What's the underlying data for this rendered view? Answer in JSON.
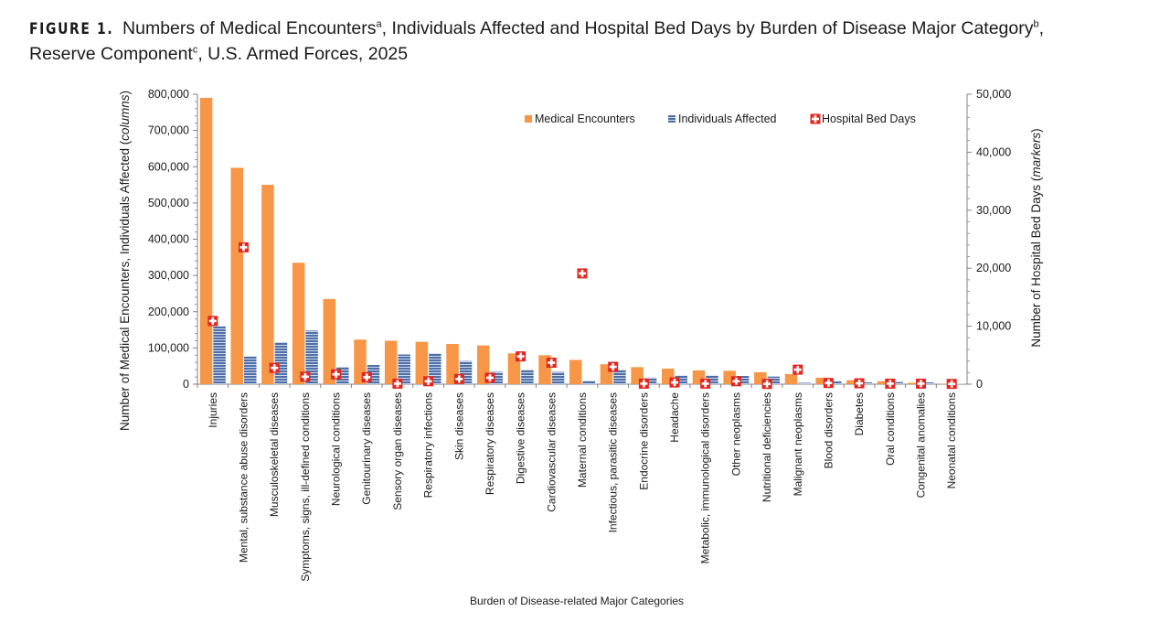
{
  "title": {
    "figure_label": "FIGURE 1.",
    "line1_text": "Numbers of Medical Encounters",
    "line1_sup_a": "a",
    "line1_mid": ", Individuals Affected and Hospital Bed Days by Burden of Disease Major Category",
    "line1_sup_b": "b",
    "line1_end": ",",
    "line2_text": "Reserve Component",
    "line2_sup_c": "c",
    "line2_end": ", U.S. Armed Forces, 2025"
  },
  "colors": {
    "medical_encounters": "#F79646",
    "individuals_affected": "#4F6FA8",
    "hospital_bed_days": "#E2261F"
  },
  "chart_data": {
    "type": "bar",
    "xlabel": "Burden of Disease-related Major Categories",
    "ylabel_left_text": "Number of Medical Encounters, Individuals Affected (",
    "ylabel_left_italic": "columns",
    "ylabel_left_end": ")",
    "ylabel_right_text": "Number of Hospital Bed Days (",
    "ylabel_right_italic": "markers",
    "ylabel_right_end": ")",
    "ylim_left": [
      0,
      800000
    ],
    "ylim_right": [
      0,
      50000
    ],
    "yticks_left": [
      "0",
      "100,000",
      "200,000",
      "300,000",
      "400,000",
      "500,000",
      "600,000",
      "700,000",
      "800,000"
    ],
    "yticks_right": [
      "0",
      "10,000",
      "20,000",
      "30,000",
      "40,000",
      "50,000"
    ],
    "legend_position": "top-right",
    "categories": [
      "Injuries",
      "Mental, substance abuse disorders",
      "Musculoskeletal diseases",
      "Symptoms, signs, ill-defined conditions",
      "Neurological conditions",
      "Genitourinary diseases",
      "Sensory organ diseases",
      "Respiratory infections",
      "Skin diseases",
      "Respiratory diseases",
      "Digestive diseases",
      "Cardiovascular diseases",
      "Maternal conditions",
      "Infectious, parasitic diseases",
      "Endocrine disorders",
      "Headache",
      "Metabolic, immunological disorders",
      "Other neoplasms",
      "Nutritional deficiencies",
      "Malignant neoplasms",
      "Blood disorders",
      "Diabetes",
      "Oral conditions",
      "Congenital anomalies",
      "Neonatal conditions"
    ],
    "series": [
      {
        "name": "Medical Encounters",
        "axis": "left",
        "kind": "bar",
        "values": [
          790000,
          597000,
          550000,
          335000,
          235000,
          123000,
          120000,
          117000,
          111000,
          107000,
          85000,
          80000,
          67000,
          55000,
          47000,
          43000,
          38000,
          37000,
          33000,
          28000,
          18000,
          11000,
          8000,
          4000,
          1000
        ]
      },
      {
        "name": "Individuals Affected",
        "axis": "left",
        "kind": "bar",
        "values": [
          160000,
          77000,
          116000,
          148000,
          48000,
          53000,
          82000,
          85000,
          64000,
          34000,
          40000,
          34000,
          10000,
          40000,
          18000,
          24000,
          24000,
          23000,
          21000,
          4000,
          8000,
          5000,
          6000,
          5000,
          1000
        ]
      },
      {
        "name": "Hospital Bed Days",
        "axis": "right",
        "kind": "marker",
        "values": [
          10900,
          23600,
          2800,
          1300,
          1700,
          1200,
          100,
          500,
          900,
          1100,
          4800,
          3700,
          19100,
          3000,
          100,
          300,
          100,
          500,
          50,
          2500,
          200,
          150,
          100,
          100,
          50
        ]
      }
    ]
  }
}
